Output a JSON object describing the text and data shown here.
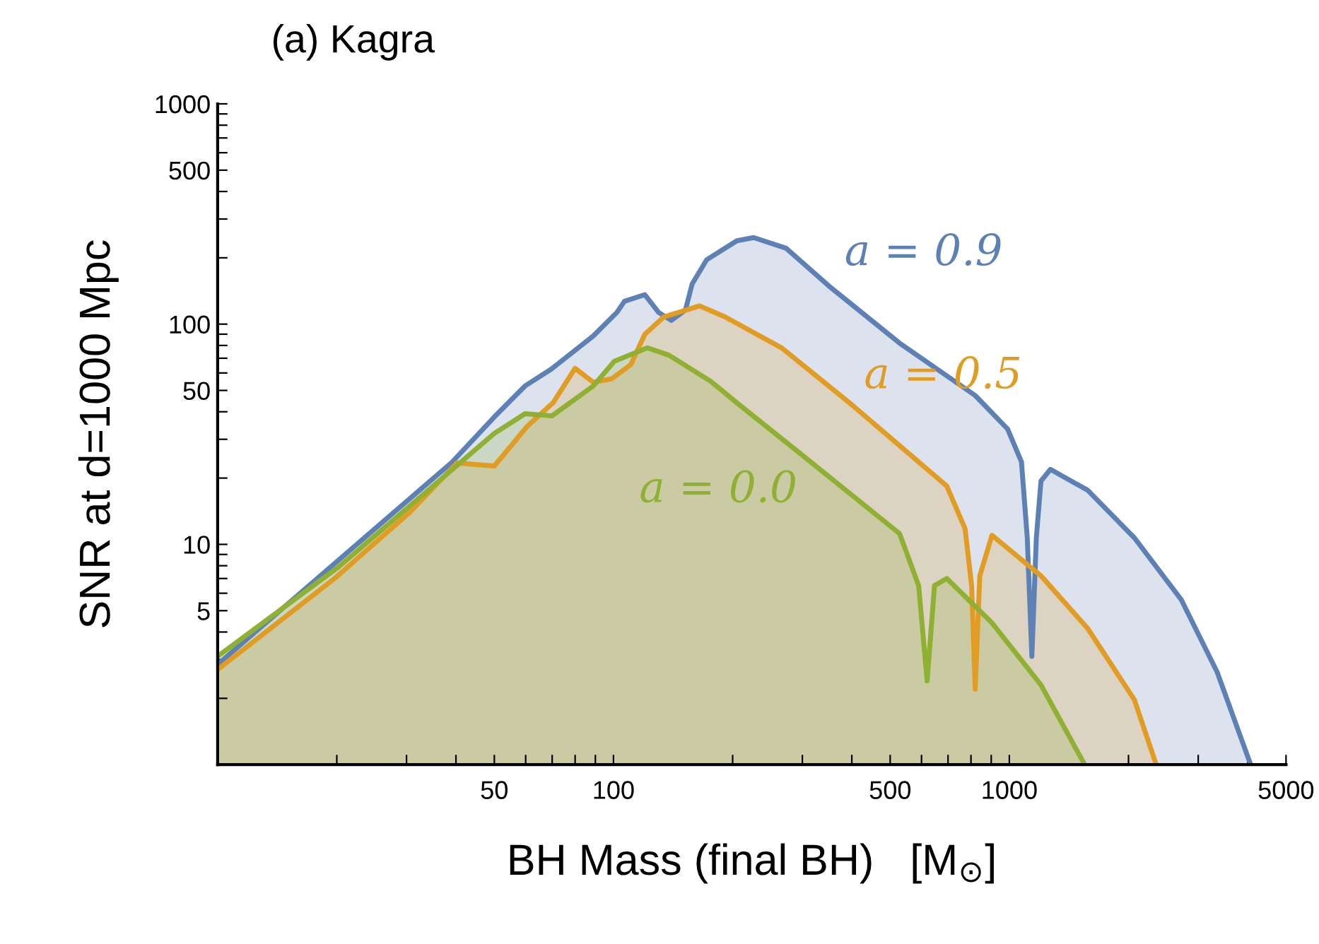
{
  "chart_data": {
    "type": "area",
    "title": "(a) Kagra",
    "xlabel": "BH Mass (final BH)   [M$_{⊙}$]",
    "ylabel": "SNR at d=1000 Mpc",
    "log": "xy",
    "grid": false,
    "legend": false,
    "xlim": [
      10,
      5000
    ],
    "ylim": [
      1,
      1000
    ],
    "xticks": [
      {
        "value": 20,
        "label": null
      },
      {
        "value": 30,
        "label": null
      },
      {
        "value": 40,
        "label": null
      },
      50,
      {
        "value": 60,
        "label": null
      },
      {
        "value": 70,
        "label": null
      },
      {
        "value": 80,
        "label": null
      },
      {
        "value": 90,
        "label": null
      },
      100,
      {
        "value": 200,
        "label": null
      },
      {
        "value": 300,
        "label": null
      },
      {
        "value": 400,
        "label": null
      },
      500,
      {
        "value": 600,
        "label": null
      },
      {
        "value": 700,
        "label": null
      },
      {
        "value": 800,
        "label": null
      },
      {
        "value": 900,
        "label": null
      },
      1000,
      {
        "value": 2000,
        "label": null
      },
      {
        "value": 3000,
        "label": null
      },
      {
        "value": 4000,
        "label": null
      },
      5000
    ],
    "yticks": [
      {
        "value": 2,
        "label": null
      },
      {
        "value": 3,
        "label": null
      },
      {
        "value": 4,
        "label": null
      },
      5,
      {
        "value": 6,
        "label": null
      },
      {
        "value": 7,
        "label": null
      },
      {
        "value": 8,
        "label": null
      },
      {
        "value": 9,
        "label": null
      },
      10,
      {
        "value": 20,
        "label": null
      },
      {
        "value": 30,
        "label": null
      },
      {
        "value": 40,
        "label": null
      },
      50,
      {
        "value": 60,
        "label": null
      },
      {
        "value": 70,
        "label": null
      },
      {
        "value": 80,
        "label": null
      },
      {
        "value": 90,
        "label": null
      },
      100,
      {
        "value": 200,
        "label": null
      },
      {
        "value": 300,
        "label": null
      },
      {
        "value": 400,
        "label": null
      },
      500,
      {
        "value": 600,
        "label": null
      },
      {
        "value": 700,
        "label": null
      },
      {
        "value": 800,
        "label": null
      },
      {
        "value": 900,
        "label": null
      },
      1000
    ],
    "series": [
      {
        "name": "a = 0.9",
        "color": "#5e81b5",
        "x": [
          10,
          39.1,
          50,
          59.8,
          69.5,
          88.9,
          102,
          106.6,
          120,
          130,
          140,
          152,
          158,
          172,
          205,
          226,
          273,
          350,
          528,
          820,
          990,
          1073,
          1110,
          1140,
          1170,
          1202,
          1270,
          1578,
          2070,
          2720,
          3350,
          4070
        ],
        "values": [
          2.85,
          23.6,
          37.9,
          52.4,
          62.3,
          88.3,
          113,
          127,
          136,
          113,
          104,
          116,
          152,
          196,
          239,
          247,
          221,
          149,
          82,
          47.4,
          33.4,
          23.7,
          10.7,
          3.1,
          10.7,
          19.4,
          21.9,
          17.6,
          10.7,
          5.6,
          2.63,
          1
        ]
      },
      {
        "name": "a = 0.5",
        "color": "#e19c24",
        "x": [
          10,
          19.7,
          30.6,
          40.2,
          50,
          60.5,
          70.4,
          80,
          88.9,
          99,
          110.6,
          120,
          134,
          165,
          191,
          266,
          401,
          695,
          773,
          803,
          820,
          842,
          904,
          1202,
          1578,
          2070,
          2350
        ],
        "values": [
          2.7,
          6.98,
          14,
          23.4,
          22.7,
          34.3,
          44,
          63,
          54.4,
          56.5,
          65.5,
          90,
          107.7,
          121,
          108,
          78,
          42.9,
          18.4,
          11.8,
          6.5,
          2.2,
          7.2,
          11,
          7.2,
          4.15,
          1.97,
          1
        ]
      },
      {
        "name": "a = 0.0",
        "color": "#8fb032",
        "x": [
          10,
          20.2,
          34,
          50,
          59.8,
          69.9,
          88.9,
          100.6,
          121.8,
          138,
          176,
          208,
          305,
          528,
          590,
          620,
          647,
          695,
          904,
          1202,
          1550
        ],
        "values": [
          3.1,
          7.9,
          17.6,
          31.9,
          39.2,
          38.3,
          52.4,
          67.9,
          78,
          72.3,
          55,
          43,
          24.8,
          11.2,
          6.5,
          2.4,
          6.5,
          7,
          4.4,
          2.3,
          1
        ]
      }
    ]
  }
}
